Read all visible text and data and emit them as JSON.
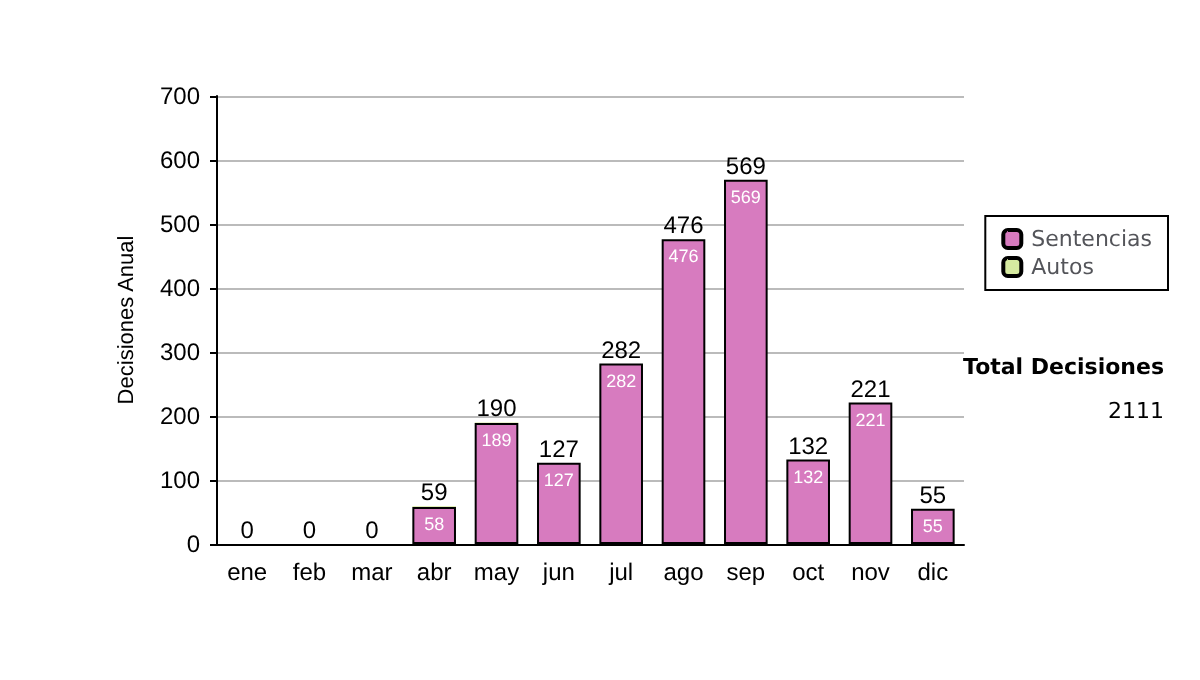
{
  "chart_data": {
    "type": "bar",
    "stacked": true,
    "ylabel": "Decisiones Anual",
    "categories": [
      "ene",
      "feb",
      "mar",
      "abr",
      "may",
      "jun",
      "jul",
      "ago",
      "sep",
      "oct",
      "nov",
      "dic"
    ],
    "series": [
      {
        "name": "Sentencias",
        "color": "#d77bbf",
        "values": [
          0,
          0,
          0,
          58,
          189,
          127,
          282,
          476,
          569,
          132,
          221,
          55
        ],
        "value_labels": [
          null,
          null,
          null,
          "58",
          "189",
          "127",
          "282",
          "476",
          "569",
          "132",
          "221",
          "55"
        ]
      },
      {
        "name": "Autos",
        "color": "#d6eaa0",
        "values": [
          0,
          0,
          0,
          1,
          1,
          0,
          0,
          0,
          0,
          0,
          0,
          0
        ]
      }
    ],
    "totals": [
      "0",
      "0",
      "0",
      "59",
      "190",
      "127",
      "282",
      "476",
      "569",
      "132",
      "221",
      "55"
    ],
    "ylim": [
      0,
      700
    ],
    "yticks": [
      0,
      100,
      200,
      300,
      400,
      500,
      600,
      700
    ],
    "grid": "y",
    "legend": "right",
    "annotations": [
      "Total Decisiones",
      "2111"
    ]
  }
}
